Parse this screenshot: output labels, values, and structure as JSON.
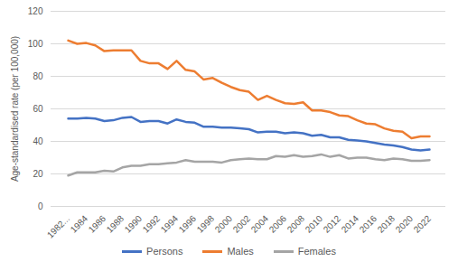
{
  "chart_data": {
    "type": "line",
    "y_label": "Age-standardised rate (per 100,000)",
    "categories": [
      "1982...",
      null,
      "1984",
      null,
      "1986",
      null,
      "1988",
      null,
      "1990",
      null,
      "1992",
      null,
      "1994",
      null,
      "1996",
      null,
      "1998",
      null,
      "2000",
      null,
      "2002",
      null,
      "2004",
      null,
      "2006",
      null,
      "2008",
      null,
      "2010",
      null,
      "2012",
      null,
      "2014",
      null,
      "2016",
      null,
      "2018",
      null,
      "2020",
      null,
      "2022"
    ],
    "series": [
      {
        "name": "Persons",
        "color": "#4472c4",
        "values": [
          54,
          54,
          54.5,
          54,
          52.5,
          53,
          54.5,
          55,
          52,
          52.5,
          52.5,
          51,
          53.5,
          52,
          51.5,
          49,
          49,
          48.5,
          48.5,
          48,
          47.5,
          45.5,
          46,
          46,
          45,
          45.5,
          45,
          43.5,
          44,
          42.5,
          42.5,
          41,
          40.5,
          40,
          39,
          38,
          37.5,
          36.5,
          35,
          34.5,
          35
        ]
      },
      {
        "name": "Males",
        "color": "#ed7d31",
        "values": [
          102,
          100,
          100.5,
          99,
          95.5,
          96,
          96,
          96,
          89.5,
          88,
          88,
          84.5,
          89.5,
          84,
          83,
          78,
          79,
          76,
          73.5,
          71.5,
          70.5,
          65.5,
          68,
          65.5,
          63.5,
          63,
          64,
          59,
          59,
          58,
          56,
          55.5,
          53,
          51,
          50.5,
          48,
          46.5,
          46,
          42,
          43,
          43
        ]
      },
      {
        "name": "Females",
        "color": "#a5a5a5",
        "values": [
          19,
          21,
          21,
          21,
          22,
          21.5,
          24,
          25,
          25,
          26,
          26,
          26.5,
          27,
          28.5,
          27.5,
          27.5,
          27.5,
          27,
          28.5,
          29,
          29.5,
          29,
          29,
          31,
          30.5,
          31.5,
          30.5,
          31,
          32,
          30.5,
          31.5,
          29.5,
          30,
          30,
          29,
          28.5,
          29.5,
          29,
          28,
          28,
          28.5
        ]
      }
    ],
    "ylim": [
      0,
      120
    ],
    "yticks": [
      0,
      20,
      40,
      60,
      80,
      100,
      120
    ],
    "grid": true,
    "legend": "bottom"
  }
}
